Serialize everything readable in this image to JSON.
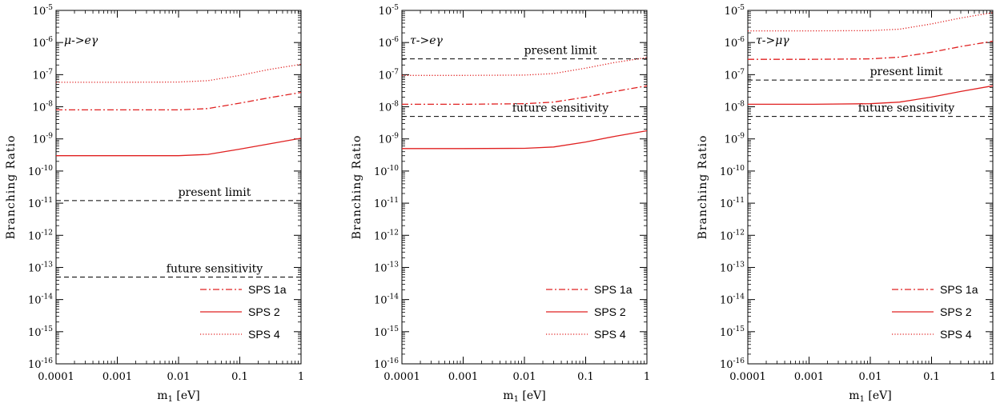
{
  "chart_data": [
    {
      "type": "line",
      "title": "μ->eγ",
      "xlabel": "m1 [eV]",
      "ylabel": "Branching Ratio",
      "xscale": "log",
      "yscale": "log",
      "xlim": [
        0.0001,
        1
      ],
      "ylim": [
        1e-16,
        1e-05
      ],
      "x_ticks": [
        "0.0001",
        "0.001",
        "0.01",
        "0.1",
        "1"
      ],
      "y_ticks": [
        "10-16",
        "10-15",
        "10-14",
        "10-13",
        "10-12",
        "10-11",
        "10-10",
        "10-9",
        "10-8",
        "10-7",
        "10-6",
        "10-5"
      ],
      "legend_position": "bottom-right",
      "series": [
        {
          "name": "SPS 1a",
          "style": "dashdot",
          "color": "#e02020",
          "x": [
            0.0001,
            0.001,
            0.01,
            0.03,
            0.1,
            0.3,
            1
          ],
          "y": [
            8e-09,
            8e-09,
            8e-09,
            8.8e-09,
            1.3e-08,
            1.9e-08,
            2.8e-08
          ]
        },
        {
          "name": "SPS 2",
          "style": "solid",
          "color": "#e02020",
          "x": [
            0.0001,
            0.001,
            0.01,
            0.03,
            0.1,
            0.3,
            1
          ],
          "y": [
            3e-10,
            3e-10,
            3e-10,
            3.3e-10,
            4.8e-10,
            7e-10,
            1.05e-09
          ]
        },
        {
          "name": "SPS 4",
          "style": "dotted",
          "color": "#e02020",
          "x": [
            0.0001,
            0.001,
            0.01,
            0.03,
            0.1,
            0.3,
            1
          ],
          "y": [
            5.8e-08,
            5.8e-08,
            5.9e-08,
            6.5e-08,
            9.5e-08,
            1.45e-07,
            2.1e-07
          ]
        }
      ],
      "reference_lines": [
        {
          "label": "present limit",
          "y": 1.2e-11
        },
        {
          "label": "future sensitivity",
          "y": 5e-14
        }
      ]
    },
    {
      "type": "line",
      "title": "τ->eγ",
      "xlabel": "m1 [eV]",
      "ylabel": "Branching Ratio",
      "xscale": "log",
      "yscale": "log",
      "xlim": [
        0.0001,
        1
      ],
      "ylim": [
        1e-16,
        1e-05
      ],
      "x_ticks": [
        "0.0001",
        "0.001",
        "0.01",
        "0.1",
        "1"
      ],
      "y_ticks": [
        "10-16",
        "10-15",
        "10-14",
        "10-13",
        "10-12",
        "10-11",
        "10-10",
        "10-9",
        "10-8",
        "10-7",
        "10-6",
        "10-5"
      ],
      "legend_position": "bottom-right",
      "series": [
        {
          "name": "SPS 1a",
          "style": "dashdot",
          "color": "#e02020",
          "x": [
            0.0001,
            0.001,
            0.01,
            0.03,
            0.1,
            0.3,
            1
          ],
          "y": [
            1.2e-08,
            1.2e-08,
            1.25e-08,
            1.4e-08,
            2e-08,
            3e-08,
            4.5e-08
          ]
        },
        {
          "name": "SPS 2",
          "style": "solid",
          "color": "#e02020",
          "x": [
            0.0001,
            0.001,
            0.01,
            0.03,
            0.1,
            0.3,
            1
          ],
          "y": [
            5e-10,
            5e-10,
            5.1e-10,
            5.6e-10,
            8e-10,
            1.2e-09,
            1.8e-09
          ]
        },
        {
          "name": "SPS 4",
          "style": "dotted",
          "color": "#e02020",
          "x": [
            0.0001,
            0.001,
            0.01,
            0.03,
            0.1,
            0.3,
            1
          ],
          "y": [
            9.5e-08,
            9.5e-08,
            9.7e-08,
            1.08e-07,
            1.6e-07,
            2.4e-07,
            3.4e-07
          ]
        }
      ],
      "reference_lines": [
        {
          "label": "present limit",
          "y": 3.1e-07
        },
        {
          "label": "future sensitivity",
          "y": 5e-09
        }
      ]
    },
    {
      "type": "line",
      "title": "τ->μγ",
      "xlabel": "m1 [eV]",
      "ylabel": "Branching Ratio",
      "xscale": "log",
      "yscale": "log",
      "xlim": [
        0.0001,
        1
      ],
      "ylim": [
        1e-16,
        1e-05
      ],
      "x_ticks": [
        "0.0001",
        "0.001",
        "0.01",
        "0.1",
        "1"
      ],
      "y_ticks": [
        "10-16",
        "10-15",
        "10-14",
        "10-13",
        "10-12",
        "10-11",
        "10-10",
        "10-9",
        "10-8",
        "10-7",
        "10-6",
        "10-5"
      ],
      "legend_position": "bottom-right",
      "series": [
        {
          "name": "SPS 1a",
          "style": "dashdot",
          "color": "#e02020",
          "x": [
            0.0001,
            0.001,
            0.01,
            0.03,
            0.1,
            0.3,
            1
          ],
          "y": [
            3e-07,
            3e-07,
            3.1e-07,
            3.5e-07,
            5e-07,
            7.5e-07,
            1.1e-06
          ]
        },
        {
          "name": "SPS 2",
          "style": "solid",
          "color": "#e02020",
          "x": [
            0.0001,
            0.001,
            0.01,
            0.03,
            0.1,
            0.3,
            1
          ],
          "y": [
            1.2e-08,
            1.2e-08,
            1.25e-08,
            1.4e-08,
            2e-08,
            3e-08,
            4.5e-08
          ]
        },
        {
          "name": "SPS 4",
          "style": "dotted",
          "color": "#e02020",
          "x": [
            0.0001,
            0.001,
            0.01,
            0.03,
            0.1,
            0.3,
            1
          ],
          "y": [
            2.3e-06,
            2.3e-06,
            2.35e-06,
            2.6e-06,
            3.8e-06,
            5.8e-06,
            8.5e-06
          ]
        }
      ],
      "reference_lines": [
        {
          "label": "present limit",
          "y": 6.8e-08
        },
        {
          "label": "future sensitivity",
          "y": 5e-09
        }
      ]
    }
  ]
}
